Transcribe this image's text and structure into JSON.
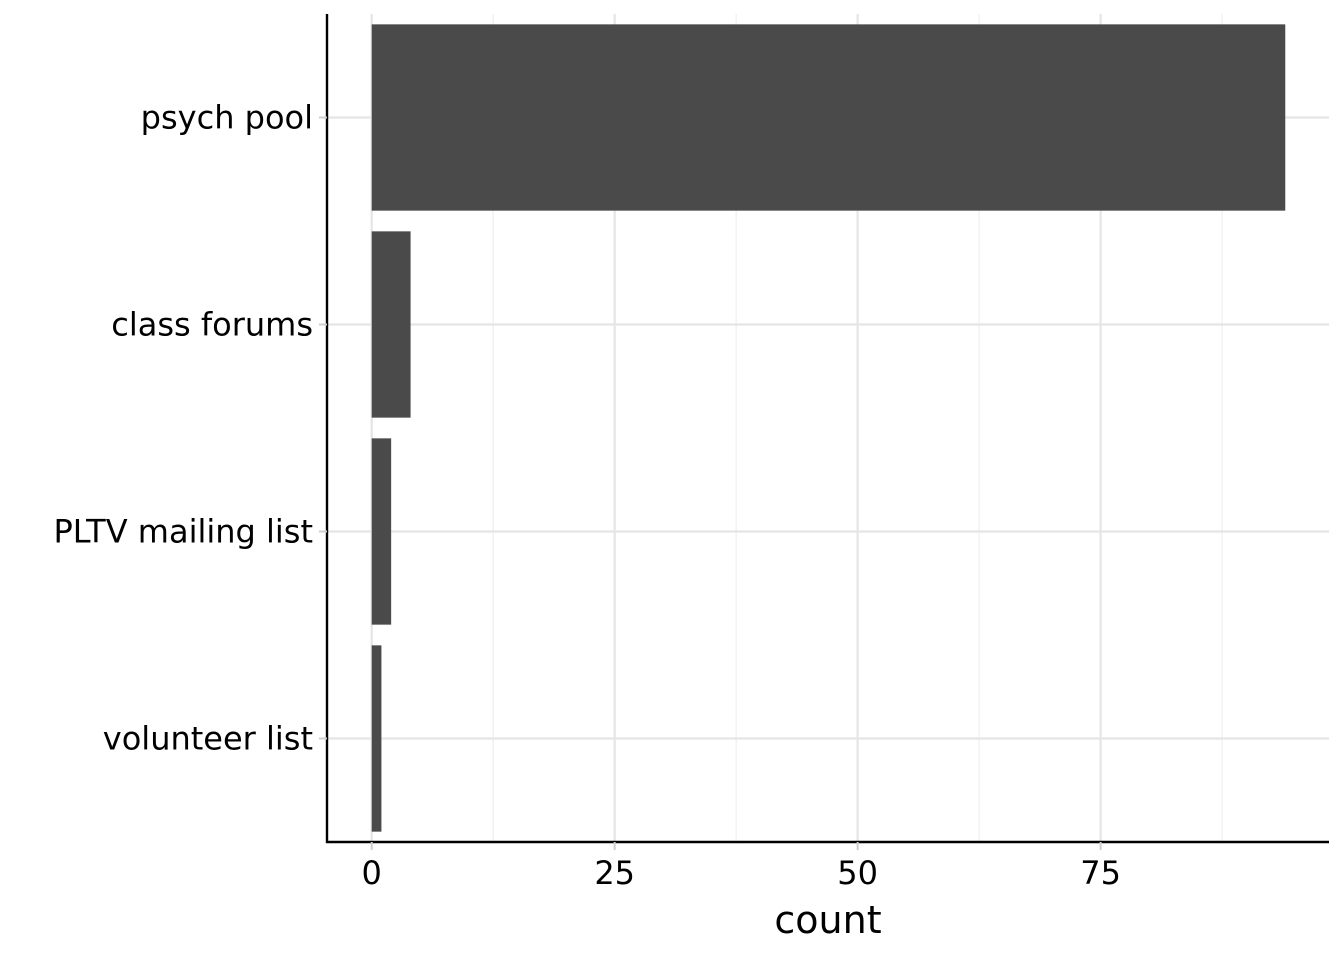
{
  "chart_data": {
    "type": "bar",
    "orientation": "horizontal",
    "categories": [
      "psych pool",
      "class forums",
      "PLTV mailing list",
      "volunteer list"
    ],
    "values": [
      94,
      4,
      2,
      1
    ],
    "xlabel": "count",
    "ylabel": "",
    "xlim": [
      -4.6,
      98.5
    ],
    "x_ticks": [
      0,
      25,
      50,
      75
    ],
    "x_tick_labels": [
      "0",
      "25",
      "50",
      "75"
    ],
    "grid": true,
    "colors": {
      "bar": "#4a4a4a",
      "grid": "#e5e5e5",
      "axis": "#000000"
    }
  }
}
